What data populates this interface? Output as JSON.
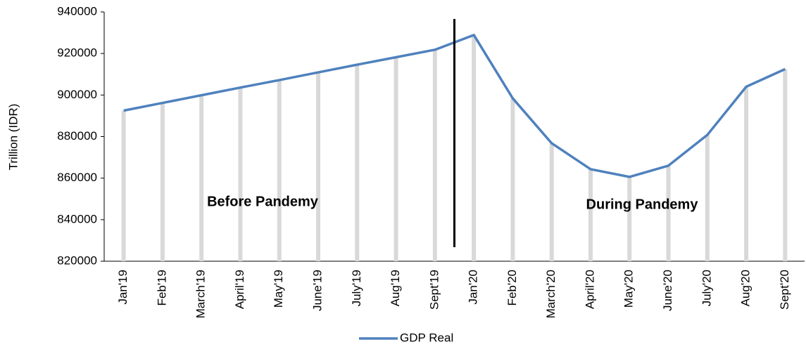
{
  "chart_data": {
    "type": "line",
    "y_label": "Trillion (IDR)",
    "categories": [
      "Jan'19",
      "Feb'19",
      "March'19",
      "April'19",
      "May'19",
      "June'19",
      "July'19",
      "Aug'19",
      "Sept'19",
      "Jan'20",
      "Feb'20",
      "March'20",
      "April'20",
      "May'20",
      "June'20",
      "July'20",
      "Aug'20",
      "Sept'20"
    ],
    "series": [
      {
        "name": "GDP Real",
        "color": "#4f81bd",
        "values": [
          892500,
          896200,
          899900,
          903600,
          907200,
          910900,
          914600,
          918200,
          921800,
          928900,
          898400,
          876800,
          864300,
          860600,
          866000,
          880800,
          904000,
          912500
        ]
      }
    ],
    "ylim": [
      820000,
      940000
    ],
    "yticks": [
      820000,
      840000,
      860000,
      880000,
      900000,
      920000,
      940000
    ],
    "drop_lines": true,
    "annotations": [
      "Before Pandemy",
      "During Pandemy"
    ],
    "legend": "bottom"
  }
}
